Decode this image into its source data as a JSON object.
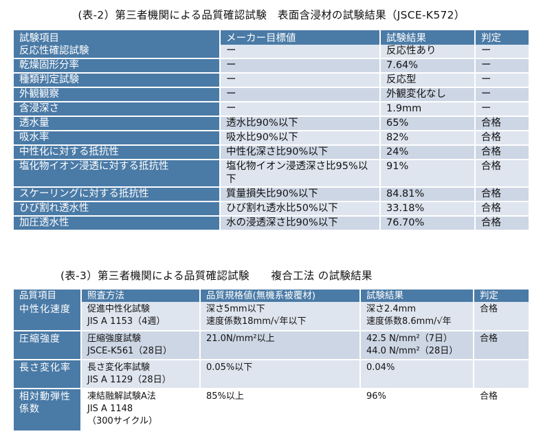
{
  "table1": {
    "caption": "(表-2）第三者機関による品質確認試験　表面含浸材の試験結果（JSCE-K572）",
    "headers": [
      "試験項目",
      "メーカー目標値",
      "試験結果",
      "判定"
    ],
    "rows": [
      [
        "反応性確認試験",
        "ー",
        "反応性あり",
        "ー"
      ],
      [
        "乾燥固形分率",
        "ー",
        "7.64%",
        "ー"
      ],
      [
        "種類判定試験",
        "ー",
        "反応型",
        "ー"
      ],
      [
        "外観観察",
        "ー",
        "外観変化なし",
        "ー"
      ],
      [
        "含浸深さ",
        "ー",
        "1.9mm",
        "ー"
      ],
      [
        "透水量",
        "透水比90%以下",
        "65%",
        "合格"
      ],
      [
        "吸水率",
        "吸水比90%以下",
        "82%",
        "合格"
      ],
      [
        "中性化に対する抵抗性",
        "中性化深さ比90%以下",
        "24%",
        "合格"
      ],
      [
        "塩化物イオン浸透に対する抵抗性",
        "塩化物イオン浸透深さ比95%以下",
        "91%",
        "合格"
      ],
      [
        "スケーリングに対する抵抗性",
        "質量損失比90%以下",
        "84.81%",
        "合格"
      ],
      [
        "ひび割れ透水性",
        "ひび割れ透水比50%以下",
        "33.18%",
        "合格"
      ],
      [
        "加圧透水性",
        "水の浸透深さ比90%以下",
        "76.70%",
        "合格"
      ]
    ]
  },
  "table2": {
    "caption": "(表-3）第三者機関による品質確認試験　　複合工法 の試験結果",
    "headers": [
      "品質項目",
      "照査方法",
      "品質規格値(無機系被覆材)",
      "試験結果",
      "判定"
    ],
    "rows": [
      {
        "item": "中性化速度",
        "method": [
          "促進中性化試験",
          "JIS A 1153（4週）"
        ],
        "spec": [
          "深さ5mm以下",
          "速度係数18mm/√年以下"
        ],
        "result": [
          "深さ2.4mm",
          "速度係数8.6mm/√年"
        ],
        "judge": "合格"
      },
      {
        "item": "圧縮強度",
        "method": [
          "圧縮強度試験",
          "JSCE-K561（28日）"
        ],
        "spec": [
          "21.0N/mm²以上"
        ],
        "result": [
          "42.5 N/mm²（7日）",
          "44.0 N/mm²（28日）"
        ],
        "judge": "合格"
      },
      {
        "item": "長さ変化率",
        "method": [
          "長さ変化率試験",
          "JIS A 1129（28日）"
        ],
        "spec": [
          "0.05%以下"
        ],
        "result": [
          "0.04%"
        ],
        "judge": ""
      },
      {
        "item": "相対動弾性係数",
        "method": [
          "凍結融解試験A法",
          "JIS A 1148",
          "（300サイクル）"
        ],
        "spec": [
          "85%以上"
        ],
        "result": [
          "96%"
        ],
        "judge": "合格"
      }
    ]
  },
  "colors": {
    "header": "#4a7aa6",
    "row_light": "#dfe5ef",
    "row_alt": "#cdd6e4"
  }
}
